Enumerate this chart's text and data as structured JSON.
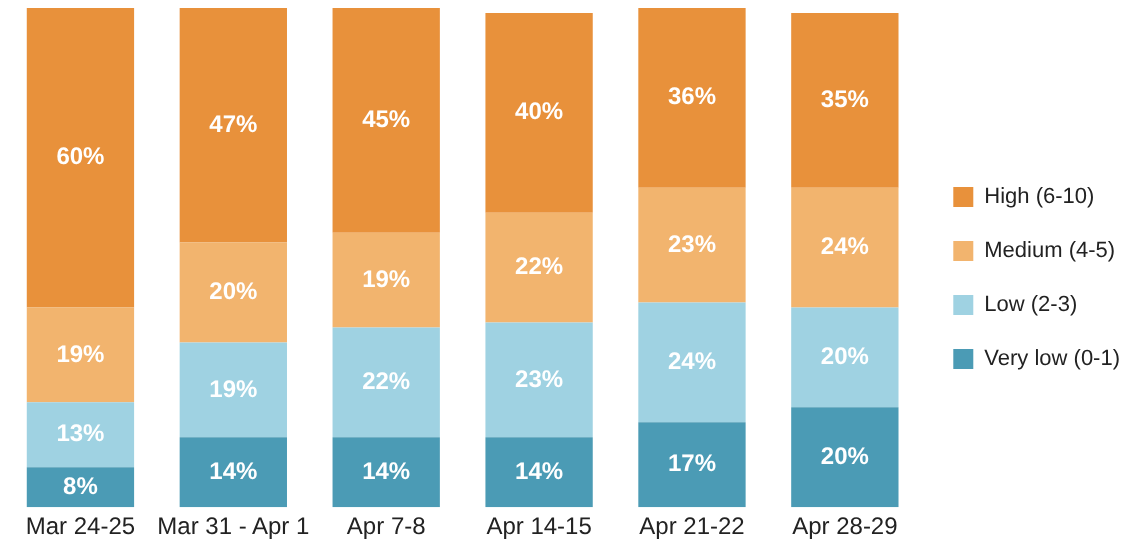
{
  "chart_data": {
    "type": "bar",
    "stacked": true,
    "legend": "right",
    "grid": false,
    "categories": [
      "Mar 24-25",
      "Mar 31 - Apr 1",
      "Apr 7-8",
      "Apr 14-15",
      "Apr 21-22",
      "Apr 28-29"
    ],
    "series": [
      {
        "name": "Very low (0-1)",
        "color": "#4b9bb5",
        "values": [
          8,
          14,
          14,
          14,
          17,
          20
        ],
        "value_labels": [
          "8%",
          "14%",
          "14%",
          "14%",
          "17%",
          "20%"
        ]
      },
      {
        "name": "Low (2-3)",
        "color": "#9fd2e2",
        "values": [
          13,
          19,
          22,
          23,
          24,
          20
        ],
        "value_labels": [
          "13%",
          "19%",
          "22%",
          "23%",
          "24%",
          "20%"
        ]
      },
      {
        "name": "Medium (4-5)",
        "color": "#f2b46e",
        "values": [
          19,
          20,
          19,
          22,
          23,
          24
        ],
        "value_labels": [
          "19%",
          "20%",
          "19%",
          "22%",
          "23%",
          "24%"
        ]
      },
      {
        "name": "High (6-10)",
        "color": "#e8913b",
        "values": [
          60,
          47,
          45,
          40,
          36,
          35
        ],
        "value_labels": [
          "60%",
          "47%",
          "45%",
          "40%",
          "36%",
          "35%"
        ]
      }
    ]
  }
}
